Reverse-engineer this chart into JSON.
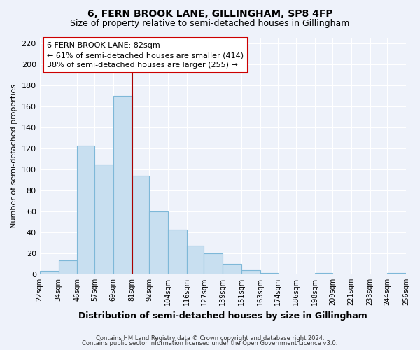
{
  "title": "6, FERN BROOK LANE, GILLINGHAM, SP8 4FP",
  "subtitle": "Size of property relative to semi-detached houses in Gillingham",
  "xlabel": "Distribution of semi-detached houses by size in Gillingham",
  "ylabel": "Number of semi-detached properties",
  "bins": [
    22,
    34,
    46,
    57,
    69,
    81,
    92,
    104,
    116,
    127,
    139,
    151,
    163,
    174,
    186,
    198,
    209,
    221,
    233,
    244,
    256
  ],
  "counts": [
    3,
    13,
    123,
    105,
    170,
    94,
    60,
    43,
    27,
    20,
    10,
    4,
    1,
    0,
    0,
    1,
    0,
    0,
    0,
    1
  ],
  "tick_labels": [
    "22sqm",
    "34sqm",
    "46sqm",
    "57sqm",
    "69sqm",
    "81sqm",
    "92sqm",
    "104sqm",
    "116sqm",
    "127sqm",
    "139sqm",
    "151sqm",
    "163sqm",
    "174sqm",
    "186sqm",
    "198sqm",
    "209sqm",
    "221sqm",
    "233sqm",
    "244sqm",
    "256sqm"
  ],
  "bar_color": "#c8dff0",
  "bar_edge_color": "#7eb8d8",
  "vline_x": 81,
  "vline_color": "#aa0000",
  "annotation_title": "6 FERN BROOK LANE: 82sqm",
  "annotation_line1": "← 61% of semi-detached houses are smaller (414)",
  "annotation_line2": "38% of semi-detached houses are larger (255) →",
  "annotation_box_color": "#ffffff",
  "annotation_box_edge": "#cc0000",
  "ylim": [
    0,
    225
  ],
  "yticks": [
    0,
    20,
    40,
    60,
    80,
    100,
    120,
    140,
    160,
    180,
    200,
    220
  ],
  "footer1": "Contains HM Land Registry data © Crown copyright and database right 2024.",
  "footer2": "Contains public sector information licensed under the Open Government Licence v3.0.",
  "bg_color": "#eef2fa",
  "grid_color": "#ffffff",
  "title_fontsize": 10,
  "subtitle_fontsize": 9,
  "figsize": [
    6.0,
    5.0
  ],
  "dpi": 100
}
